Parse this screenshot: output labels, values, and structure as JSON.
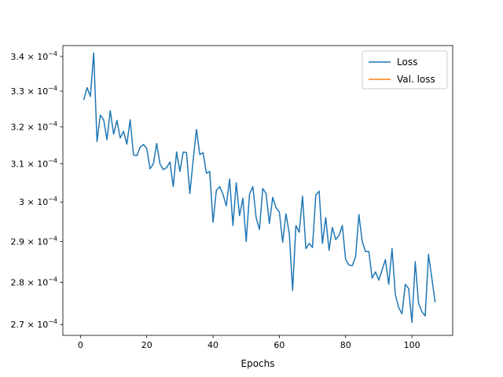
{
  "chart_data": {
    "type": "line",
    "title": "",
    "xlabel": "Epochs",
    "ylabel": "",
    "yscale": "log",
    "xlim": [
      -5.3,
      112.3
    ],
    "ylim": [
      0.0002675,
      0.0003432
    ],
    "grid": false,
    "legend": {
      "placement": "top-right"
    },
    "x_ticks": [
      {
        "value": 0,
        "label": "0"
      },
      {
        "value": 20,
        "label": "20"
      },
      {
        "value": 40,
        "label": "40"
      },
      {
        "value": 60,
        "label": "60"
      },
      {
        "value": 80,
        "label": "80"
      },
      {
        "value": 100,
        "label": "100"
      }
    ],
    "y_ticks": [
      {
        "value": 0.00027,
        "mant": "2.7",
        "exp": "−4"
      },
      {
        "value": 0.00028,
        "mant": "2.8",
        "exp": "−4"
      },
      {
        "value": 0.00029,
        "mant": "2.9",
        "exp": "−4"
      },
      {
        "value": 0.0003,
        "mant": "3",
        "exp": "−4"
      },
      {
        "value": 0.00031,
        "mant": "3.1",
        "exp": "−4"
      },
      {
        "value": 0.00032,
        "mant": "3.2",
        "exp": "−4"
      },
      {
        "value": 0.00033,
        "mant": "3.3",
        "exp": "−4"
      },
      {
        "value": 0.00034,
        "mant": "3.4",
        "exp": "−4"
      }
    ],
    "series": [
      {
        "name": "Loss",
        "color": "#1f77b4",
        "x": [
          1,
          2,
          3,
          4,
          5,
          6,
          7,
          8,
          9,
          10,
          11,
          12,
          13,
          14,
          15,
          16,
          17,
          18,
          19,
          20,
          21,
          22,
          23,
          24,
          25,
          26,
          27,
          28,
          29,
          30,
          31,
          32,
          33,
          34,
          35,
          36,
          37,
          38,
          39,
          40,
          41,
          42,
          43,
          44,
          45,
          46,
          47,
          48,
          49,
          50,
          51,
          52,
          53,
          54,
          55,
          56,
          57,
          58,
          59,
          60,
          61,
          62,
          63,
          64,
          65,
          66,
          67,
          68,
          69,
          70,
          71,
          72,
          73,
          74,
          75,
          76,
          77,
          78,
          79,
          80,
          81,
          82,
          83,
          84,
          85,
          86,
          87,
          88,
          89,
          90,
          91,
          92,
          93,
          94,
          95,
          96,
          97,
          98,
          99,
          100,
          101,
          102,
          103,
          104,
          105,
          106,
          107
        ],
        "values": [
          0.0003275,
          0.000331,
          0.0003285,
          0.000341,
          0.000316,
          0.0003233,
          0.000322,
          0.0003165,
          0.0003245,
          0.000318,
          0.0003218,
          0.000317,
          0.0003188,
          0.0003153,
          0.000322,
          0.0003124,
          0.0003122,
          0.0003145,
          0.0003152,
          0.0003142,
          0.0003087,
          0.00031,
          0.0003155,
          0.00031,
          0.0003085,
          0.000309,
          0.0003105,
          0.000304,
          0.0003132,
          0.000308,
          0.0003132,
          0.000313,
          0.0003022,
          0.000311,
          0.0003193,
          0.0003125,
          0.000313,
          0.0003075,
          0.000308,
          0.0002948,
          0.000303,
          0.000304,
          0.000302,
          0.000299,
          0.000306,
          0.000294,
          0.000305,
          0.0002965,
          0.000301,
          0.00029,
          0.000302,
          0.000304,
          0.000296,
          0.000293,
          0.0003035,
          0.0003022,
          0.0002945,
          0.0003012,
          0.0002985,
          0.0002975,
          0.0002898,
          0.000297,
          0.000292,
          0.000278,
          0.000294,
          0.0002923,
          0.0003015,
          0.0002882,
          0.0002895,
          0.0002885,
          0.0003018,
          0.0003028,
          0.0002895,
          0.000296,
          0.0002878,
          0.0002935,
          0.0002905,
          0.0002915,
          0.000294,
          0.0002855,
          0.0002842,
          0.000284,
          0.0002862,
          0.0002968,
          0.00029,
          0.0002875,
          0.0002875,
          0.000281,
          0.0002825,
          0.0002805,
          0.000283,
          0.0002855,
          0.0002795,
          0.0002882,
          0.000277,
          0.000274,
          0.0002725,
          0.0002795,
          0.0002785,
          0.0002705,
          0.000285,
          0.000275,
          0.000273,
          0.000272,
          0.0002868,
          0.000281,
          0.0002752
        ]
      },
      {
        "name": "Val. loss",
        "color": "#ff7f0e",
        "x": [],
        "values": []
      }
    ]
  }
}
